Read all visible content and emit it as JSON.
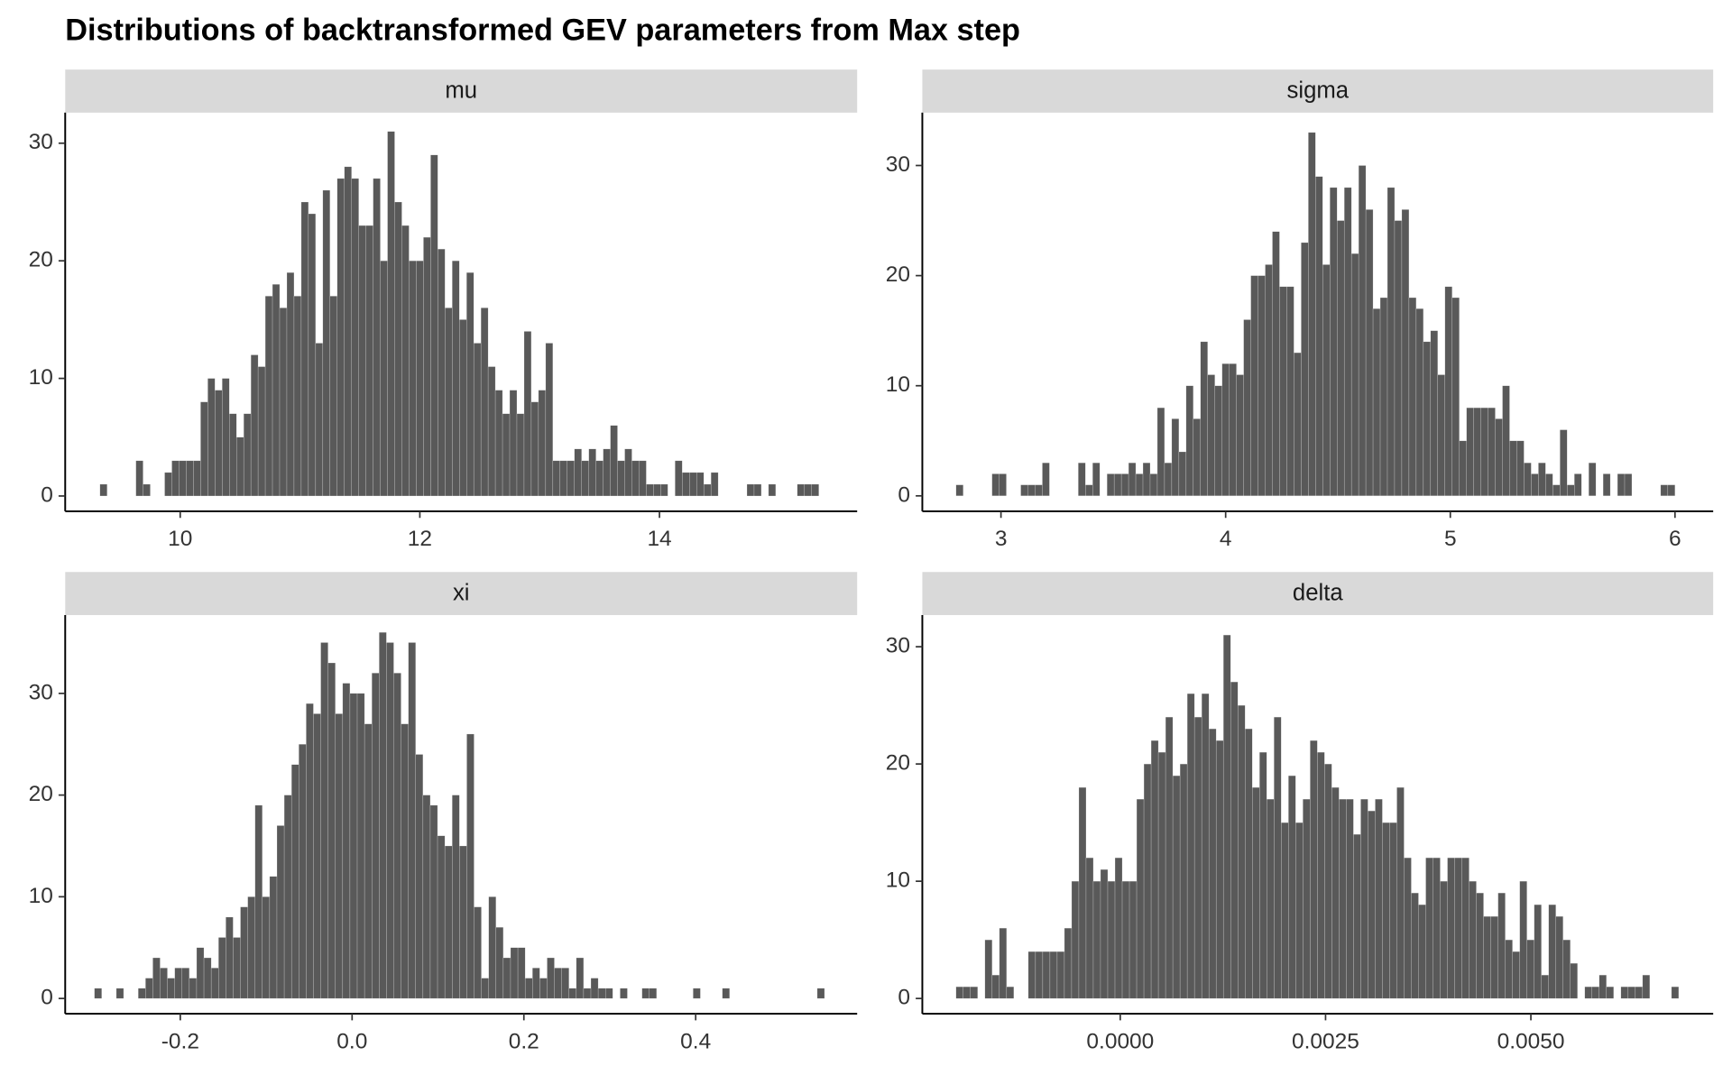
{
  "title": "Distributions of backtransformed GEV parameters from Max step",
  "chart_data": [
    {
      "type": "histogram",
      "title": "mu",
      "color": "#595959",
      "bins": [
        9.33,
        9.39,
        9.45,
        9.51,
        9.57,
        9.63,
        9.69,
        9.75,
        9.81,
        9.87,
        9.93,
        9.99,
        10.05,
        10.11,
        10.17,
        10.23,
        10.29,
        10.35,
        10.41,
        10.47,
        10.53,
        10.59,
        10.65,
        10.71,
        10.77,
        10.83,
        10.89,
        10.95,
        11.01,
        11.07,
        11.13,
        11.19,
        11.25,
        11.31,
        11.37,
        11.43,
        11.49,
        11.55,
        11.61,
        11.67,
        11.73,
        11.79,
        11.85,
        11.91,
        11.97,
        12.03,
        12.09,
        12.15,
        12.21,
        12.27,
        12.33,
        12.39,
        12.45,
        12.51,
        12.57,
        12.63,
        12.69,
        12.75,
        12.81,
        12.87,
        12.93,
        12.99,
        13.05,
        13.11,
        13.17,
        13.23,
        13.29,
        13.35,
        13.41,
        13.47,
        13.53,
        13.59,
        13.65,
        13.71,
        13.77,
        13.83,
        13.89,
        13.95,
        14.01,
        14.07,
        14.13,
        14.19,
        14.25,
        14.31,
        14.37,
        14.43,
        14.49,
        14.55,
        14.61,
        14.67,
        14.73,
        14.79,
        14.85,
        14.91,
        14.97,
        15.03,
        15.09,
        15.15,
        15.21,
        15.27,
        15.33
      ],
      "counts": [
        1,
        0,
        0,
        0,
        0,
        3,
        1,
        0,
        0,
        2,
        3,
        3,
        3,
        3,
        8,
        10,
        9,
        10,
        7,
        5,
        7,
        12,
        11,
        17,
        18,
        16,
        19,
        17,
        25,
        24,
        13,
        26,
        17,
        27,
        28,
        27,
        23,
        23,
        27,
        20,
        31,
        25,
        23,
        20,
        20,
        22,
        29,
        21,
        16,
        20,
        15,
        19,
        13,
        16,
        11,
        9,
        7,
        9,
        7,
        14,
        8,
        9,
        13,
        3,
        3,
        3,
        4,
        3,
        4,
        3,
        4,
        6,
        3,
        4,
        3,
        3,
        1,
        1,
        1,
        0,
        3,
        2,
        2,
        2,
        1,
        2,
        0,
        0,
        0,
        0,
        1,
        1,
        0,
        1,
        0,
        0,
        0,
        1,
        1,
        1
      ],
      "xlim": [
        9.04,
        15.65
      ],
      "ylim": [
        -1.3,
        32.6
      ],
      "xticks": [
        10,
        12,
        14
      ],
      "yticks": [
        0,
        10,
        20,
        30
      ]
    },
    {
      "type": "histogram",
      "title": "sigma",
      "color": "#595959",
      "bins": [
        2.8,
        2.832,
        2.864,
        2.896,
        2.928,
        2.96,
        2.992,
        3.024,
        3.056,
        3.088,
        3.12,
        3.152,
        3.184,
        3.216,
        3.248,
        3.28,
        3.312,
        3.344,
        3.376,
        3.408,
        3.44,
        3.472,
        3.504,
        3.536,
        3.568,
        3.6,
        3.632,
        3.664,
        3.696,
        3.728,
        3.76,
        3.792,
        3.824,
        3.856,
        3.888,
        3.92,
        3.952,
        3.984,
        4.016,
        4.048,
        4.08,
        4.112,
        4.144,
        4.176,
        4.208,
        4.24,
        4.272,
        4.304,
        4.336,
        4.368,
        4.4,
        4.432,
        4.464,
        4.496,
        4.528,
        4.56,
        4.592,
        4.624,
        4.656,
        4.688,
        4.72,
        4.752,
        4.784,
        4.816,
        4.848,
        4.88,
        4.912,
        4.944,
        4.976,
        5.008,
        5.04,
        5.072,
        5.104,
        5.136,
        5.168,
        5.2,
        5.232,
        5.264,
        5.296,
        5.328,
        5.36,
        5.392,
        5.424,
        5.456,
        5.488,
        5.52,
        5.552,
        5.584,
        5.616,
        5.648,
        5.68,
        5.712,
        5.744,
        5.776,
        5.808,
        5.84,
        5.872,
        5.904,
        5.936,
        5.968,
        6.0
      ],
      "counts": [
        1,
        0,
        0,
        0,
        0,
        2,
        2,
        0,
        0,
        1,
        1,
        1,
        3,
        0,
        0,
        0,
        0,
        3,
        1,
        3,
        0,
        2,
        2,
        2,
        3,
        2,
        3,
        2,
        8,
        3,
        7,
        4,
        10,
        7,
        14,
        11,
        10,
        12,
        12,
        11,
        16,
        20,
        20,
        21,
        24,
        19,
        19,
        13,
        23,
        33,
        29,
        21,
        28,
        25,
        28,
        22,
        30,
        26,
        17,
        18,
        28,
        25,
        26,
        18,
        17,
        14,
        15,
        11,
        19,
        18,
        5,
        8,
        8,
        8,
        8,
        7,
        10,
        5,
        5,
        3,
        2,
        3,
        2,
        1,
        6,
        1,
        2,
        0,
        3,
        0,
        2,
        0,
        2,
        2,
        0,
        0,
        0,
        0,
        1,
        1
      ],
      "xlim": [
        2.65,
        6.17
      ],
      "ylim": [
        -1.4,
        34.8
      ],
      "xticks": [
        3,
        4,
        5,
        6
      ],
      "yticks": [
        0,
        10,
        20,
        30
      ]
    },
    {
      "type": "histogram",
      "title": "xi",
      "color": "#595959",
      "bins": [
        -0.3,
        -0.2915,
        -0.283,
        -0.2745,
        -0.266,
        -0.2575,
        -0.249,
        -0.2405,
        -0.232,
        -0.2235,
        -0.215,
        -0.2065,
        -0.198,
        -0.1895,
        -0.181,
        -0.1725,
        -0.164,
        -0.1555,
        -0.147,
        -0.1385,
        -0.13,
        -0.1215,
        -0.113,
        -0.1045,
        -0.096,
        -0.0875,
        -0.079,
        -0.0705,
        -0.062,
        -0.0535,
        -0.045,
        -0.0365,
        -0.028,
        -0.0195,
        -0.011,
        -0.0025,
        0.006,
        0.0145,
        0.023,
        0.0315,
        0.04,
        0.0485,
        0.057,
        0.0655,
        0.074,
        0.0825,
        0.091,
        0.0995,
        0.108,
        0.1165,
        0.125,
        0.1335,
        0.142,
        0.1505,
        0.159,
        0.1675,
        0.176,
        0.1845,
        0.193,
        0.2015,
        0.21,
        0.2185,
        0.227,
        0.2355,
        0.244,
        0.2525,
        0.261,
        0.2695,
        0.278,
        0.2865,
        0.295,
        0.3035,
        0.312,
        0.3205,
        0.329,
        0.3375,
        0.346,
        0.3545,
        0.363,
        0.3715,
        0.38,
        0.3885,
        0.397,
        0.4055,
        0.414,
        0.4225,
        0.431,
        0.4395,
        0.448,
        0.4565,
        0.465,
        0.4735,
        0.482,
        0.4905,
        0.499,
        0.5075,
        0.516,
        0.5245,
        0.533,
        0.5415,
        0.55
      ],
      "counts": [
        1,
        0,
        0,
        1,
        0,
        0,
        1,
        2,
        4,
        3,
        2,
        3,
        3,
        2,
        5,
        4,
        3,
        6,
        8,
        6,
        9,
        10,
        19,
        10,
        12,
        17,
        20,
        23,
        25,
        29,
        28,
        35,
        33,
        28,
        31,
        30,
        30,
        27,
        32,
        36,
        35,
        32,
        27,
        35,
        24,
        20,
        19,
        16,
        15,
        20,
        15,
        26,
        9,
        2,
        10,
        7,
        4,
        5,
        5,
        2,
        3,
        2,
        4,
        3,
        3,
        1,
        4,
        1,
        2,
        1,
        1,
        0,
        1,
        0,
        0,
        1,
        1,
        0,
        0,
        0,
        0,
        0,
        1,
        0,
        0,
        0,
        1,
        0,
        0,
        0,
        0,
        0,
        0,
        0,
        0,
        0,
        0,
        0,
        0,
        1
      ],
      "xlim": [
        -0.334,
        0.588
      ],
      "ylim": [
        -1.5,
        37.7
      ],
      "xticks": [
        -0.2,
        {
          "value": 0,
          "label": "0.0"
        },
        0.2,
        0.4
      ],
      "yticks": [
        0,
        10,
        20,
        30
      ]
    },
    {
      "type": "histogram",
      "title": "delta",
      "color": "#595959",
      "bins": [
        -0.002,
        -0.001912,
        -0.001824,
        -0.001736,
        -0.001648,
        -0.00156,
        -0.001472,
        -0.001384,
        -0.001296,
        -0.001208,
        -0.00112,
        -0.001032,
        -0.000944,
        -0.000856,
        -0.000768,
        -0.00068,
        -0.000592,
        -0.000504,
        -0.000416,
        -0.000328,
        -0.00024,
        -0.000152,
        -6.4e-05,
        2.4e-05,
        0.000112,
        0.0002,
        0.000288,
        0.000376,
        0.000464,
        0.000552,
        0.00064,
        0.000728,
        0.000816,
        0.000904,
        0.000992,
        0.00108,
        0.001168,
        0.001256,
        0.001344,
        0.001432,
        0.00152,
        0.001608,
        0.001696,
        0.001784,
        0.001872,
        0.00196,
        0.002048,
        0.002136,
        0.002224,
        0.002312,
        0.0024,
        0.002488,
        0.002576,
        0.002664,
        0.002752,
        0.00284,
        0.002928,
        0.003016,
        0.003104,
        0.003192,
        0.00328,
        0.003368,
        0.003456,
        0.003544,
        0.003632,
        0.00372,
        0.003808,
        0.003896,
        0.003984,
        0.004072,
        0.00416,
        0.004248,
        0.004336,
        0.004424,
        0.004512,
        0.0046,
        0.004688,
        0.004776,
        0.004864,
        0.004952,
        0.00504,
        0.005128,
        0.005216,
        0.005304,
        0.005392,
        0.00548,
        0.005568,
        0.005656,
        0.005744,
        0.005832,
        0.00592,
        0.006008,
        0.006096,
        0.006184,
        0.006272,
        0.00636,
        0.006448,
        0.006536,
        0.006624,
        0.006712,
        0.0068
      ],
      "counts": [
        1,
        1,
        1,
        0,
        5,
        2,
        6,
        1,
        0,
        0,
        4,
        4,
        4,
        4,
        4,
        6,
        10,
        18,
        12,
        10,
        11,
        10,
        12,
        10,
        10,
        17,
        20,
        22,
        21,
        24,
        19,
        20,
        26,
        24,
        26,
        23,
        22,
        31,
        27,
        25,
        23,
        18,
        21,
        17,
        24,
        15,
        19,
        15,
        17,
        22,
        21,
        20,
        18,
        17,
        17,
        14,
        17,
        16,
        17,
        15,
        15,
        18,
        12,
        9,
        8,
        12,
        12,
        10,
        12,
        12,
        12,
        10,
        9,
        7,
        7,
        9,
        5,
        4,
        10,
        5,
        8,
        2,
        8,
        7,
        5,
        3,
        0,
        1,
        1,
        2,
        1,
        0,
        1,
        1,
        1,
        2,
        0,
        0,
        0,
        1
      ],
      "xlim": [
        -0.00241,
        0.00722
      ],
      "ylim": [
        -1.3,
        32.7
      ],
      "xticks": [
        {
          "value": 0,
          "label": "0.0000"
        },
        {
          "value": 0.0025,
          "label": "0.0025"
        },
        {
          "value": 0.005,
          "label": "0.0050"
        }
      ],
      "yticks": [
        0,
        10,
        20,
        30
      ]
    }
  ]
}
